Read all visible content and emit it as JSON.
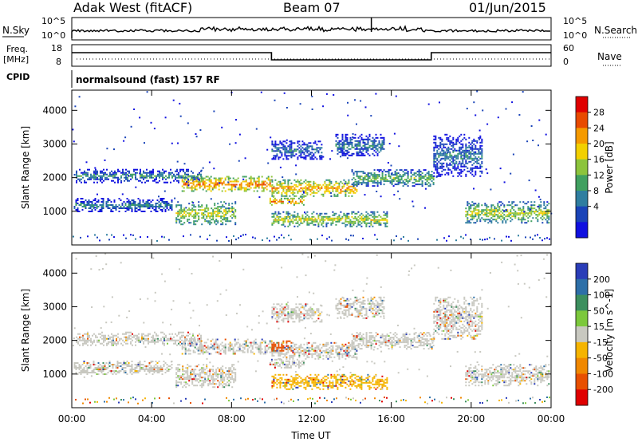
{
  "header": {
    "station": "Adak West (fitACF)",
    "beam": "Beam 07",
    "date": "01/Jun/2015"
  },
  "nsky_panel": {
    "left_label": "N.Sky",
    "right_label": "N.Search",
    "left_ticks": [
      "10^5",
      "10^0"
    ],
    "right_ticks": [
      "10^5",
      "10^0"
    ]
  },
  "freq_panel": {
    "left_label_1": "Freq.",
    "left_label_2": "[MHz]",
    "right_label": "Nave",
    "left_ticks": [
      "18",
      "8"
    ],
    "right_ticks": [
      "60",
      "0"
    ]
  },
  "cpid": {
    "label": "CPID",
    "text": "normalsound (fast) 157 RF"
  },
  "chart_data": [
    {
      "type": "heatmap",
      "quantity": "Power",
      "ylabel": "Slant Range [km]",
      "colorbar_label": "Power [dB]",
      "x_ticks": [
        "00:00",
        "04:00",
        "08:00",
        "12:00",
        "16:00",
        "20:00",
        "00:00"
      ],
      "y_ticks": [
        1000,
        2000,
        3000,
        4000
      ],
      "y_range": [
        0,
        4600
      ],
      "x_range_hours": [
        0,
        24
      ],
      "colorbar_ticks": [
        "28",
        "24",
        "20",
        "16",
        "12",
        "8",
        "4"
      ],
      "colorbar_range": [
        0,
        32
      ],
      "colors": [
        "#1010e0",
        "#1a44b8",
        "#2f7ea0",
        "#40a060",
        "#8cc43c",
        "#f2d000",
        "#f59a00",
        "#e84a00",
        "#e00000"
      ],
      "regions": [
        {
          "t0": 0.2,
          "t1": 6.5,
          "r0": 1880,
          "r1": 2260,
          "level": 0.18
        },
        {
          "t0": 5.5,
          "t1": 10.0,
          "r0": 1600,
          "r1": 2050,
          "level": 0.6
        },
        {
          "t0": 10.0,
          "t1": 14.3,
          "r0": 1450,
          "r1": 1950,
          "level": 0.55
        },
        {
          "t0": 14.0,
          "t1": 18.1,
          "r0": 1750,
          "r1": 2250,
          "level": 0.3
        },
        {
          "t0": 5.2,
          "t1": 8.2,
          "r0": 600,
          "r1": 1300,
          "level": 0.4
        },
        {
          "t0": 10.0,
          "t1": 15.8,
          "r0": 550,
          "r1": 1000,
          "level": 0.4
        },
        {
          "t0": 9.9,
          "t1": 11.6,
          "r0": 1180,
          "r1": 1450,
          "level": 0.55
        },
        {
          "t0": 10.0,
          "t1": 12.5,
          "r0": 2550,
          "r1": 3100,
          "level": 0.12
        },
        {
          "t0": 13.2,
          "t1": 15.6,
          "r0": 2650,
          "r1": 3300,
          "level": 0.15
        },
        {
          "t0": 18.1,
          "t1": 20.5,
          "r0": 2050,
          "r1": 3300,
          "level": 0.12
        },
        {
          "t0": 19.7,
          "t1": 23.9,
          "r0": 650,
          "r1": 1300,
          "level": 0.38
        },
        {
          "t0": 0.1,
          "t1": 5.0,
          "r0": 1000,
          "r1": 1400,
          "level": 0.15
        }
      ]
    },
    {
      "type": "heatmap",
      "quantity": "Velocity",
      "ylabel": "Slant Range [km]",
      "colorbar_label": "Velocity [m s^-1]",
      "xlabel": "Time UT",
      "x_ticks": [
        "00:00",
        "04:00",
        "08:00",
        "12:00",
        "16:00",
        "20:00",
        "00:00"
      ],
      "y_ticks": [
        1000,
        2000,
        3000,
        4000
      ],
      "y_range": [
        0,
        4600
      ],
      "x_range_hours": [
        0,
        24
      ],
      "colorbar_ticks": [
        "200",
        "100",
        "50",
        "15",
        "-15",
        "-50",
        "-100",
        "-200"
      ],
      "colors": [
        "#2a3db8",
        "#2d6fa8",
        "#3c8f5e",
        "#7cc83c",
        "#c8c8c0",
        "#f5b400",
        "#f08800",
        "#e85000",
        "#e00000"
      ],
      "regions": [
        {
          "t0": 0.2,
          "t1": 6.5,
          "r0": 1880,
          "r1": 2260,
          "color": "#c8c8c0"
        },
        {
          "t0": 5.5,
          "t1": 10.0,
          "r0": 1600,
          "r1": 2050,
          "color": "#c8c8c0"
        },
        {
          "t0": 10.0,
          "t1": 14.3,
          "r0": 1450,
          "r1": 1950,
          "color": "#c8c8c0"
        },
        {
          "t0": 14.0,
          "t1": 18.1,
          "r0": 1750,
          "r1": 2250,
          "color": "#c8c8c0"
        },
        {
          "t0": 5.2,
          "t1": 8.2,
          "r0": 600,
          "r1": 1300,
          "color": "#c8c8c0"
        },
        {
          "t0": 10.0,
          "t1": 15.8,
          "r0": 550,
          "r1": 1000,
          "color": "#f5b400"
        },
        {
          "t0": 10.0,
          "t1": 11.0,
          "r0": 1700,
          "r1": 2000,
          "color": "#e85000"
        },
        {
          "t0": 9.9,
          "t1": 11.6,
          "r0": 1180,
          "r1": 1450,
          "color": "#c8c8c0"
        },
        {
          "t0": 10.0,
          "t1": 12.5,
          "r0": 2550,
          "r1": 3100,
          "color": "#c8c8c0"
        },
        {
          "t0": 13.2,
          "t1": 15.6,
          "r0": 2650,
          "r1": 3300,
          "color": "#c8c8c0"
        },
        {
          "t0": 18.1,
          "t1": 20.5,
          "r0": 2050,
          "r1": 3300,
          "color": "#c8c8c0"
        },
        {
          "t0": 19.7,
          "t1": 23.9,
          "r0": 650,
          "r1": 1300,
          "color": "#c8c8c0"
        },
        {
          "t0": 0.1,
          "t1": 5.0,
          "r0": 1000,
          "r1": 1400,
          "color": "#c8c8c0"
        }
      ]
    }
  ]
}
